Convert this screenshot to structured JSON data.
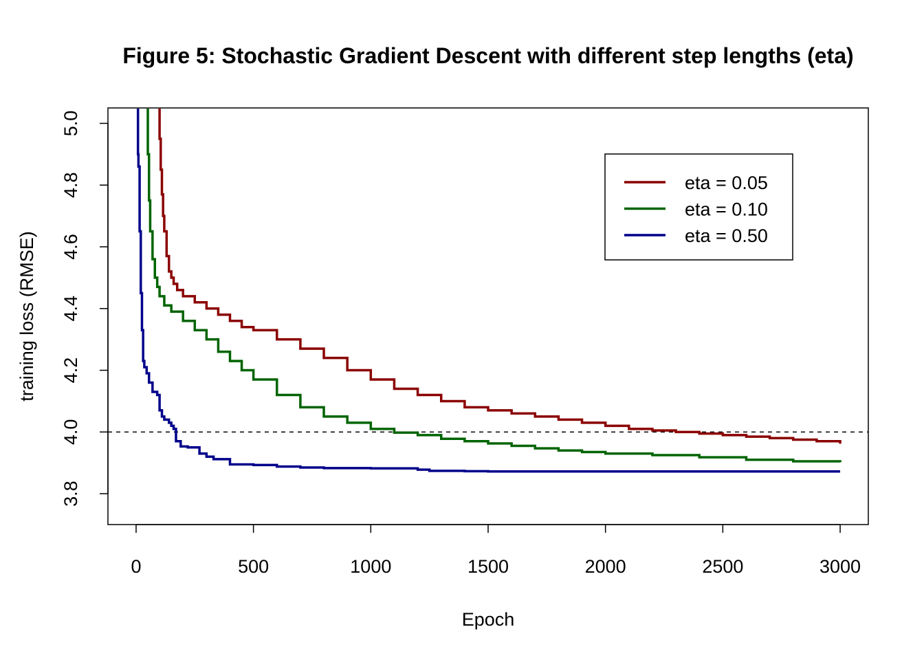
{
  "chart_data": {
    "type": "line",
    "title": "Figure 5: Stochastic Gradient Descent with different step lengths (eta)",
    "xlabel": "Epoch",
    "ylabel": "training loss (RMSE)",
    "xlim": [
      -120,
      3120
    ],
    "ylim": [
      3.7,
      5.05
    ],
    "xticks": [
      0,
      500,
      1000,
      1500,
      2000,
      2500,
      3000
    ],
    "xtick_labels": [
      "0",
      "500",
      "1000",
      "1500",
      "2000",
      "2500",
      "3000"
    ],
    "yticks": [
      3.8,
      4.0,
      4.2,
      4.4,
      4.6,
      4.8,
      5.0
    ],
    "ytick_labels": [
      "3.8",
      "4.0",
      "4.2",
      "4.4",
      "4.6",
      "4.8",
      "5.0"
    ],
    "grid": false,
    "legend_position": "top-right",
    "reference_line": {
      "y": 4.0,
      "style": "dashed",
      "color": "#000000"
    },
    "series": [
      {
        "name": "eta = 0.05",
        "color": "#8B0000",
        "x": [
          95,
          100,
          105,
          110,
          115,
          120,
          130,
          140,
          150,
          160,
          175,
          200,
          250,
          300,
          350,
          400,
          450,
          500,
          600,
          700,
          800,
          900,
          1000,
          1100,
          1200,
          1300,
          1400,
          1500,
          1600,
          1700,
          1800,
          1900,
          2000,
          2100,
          2200,
          2300,
          2400,
          2500,
          2600,
          2700,
          2800,
          2900,
          3000
        ],
        "y": [
          5.05,
          4.95,
          4.85,
          4.77,
          4.7,
          4.65,
          4.57,
          4.52,
          4.5,
          4.48,
          4.46,
          4.44,
          4.42,
          4.4,
          4.38,
          4.36,
          4.34,
          4.33,
          4.3,
          4.27,
          4.24,
          4.2,
          4.17,
          4.14,
          4.12,
          4.1,
          4.08,
          4.07,
          4.06,
          4.05,
          4.04,
          4.03,
          4.02,
          4.01,
          4.005,
          4.0,
          3.995,
          3.99,
          3.985,
          3.98,
          3.975,
          3.97,
          3.962
        ]
      },
      {
        "name": "eta = 0.10",
        "color": "#006400",
        "x": [
          45,
          50,
          55,
          60,
          70,
          80,
          90,
          100,
          120,
          150,
          200,
          250,
          300,
          350,
          400,
          450,
          500,
          600,
          700,
          800,
          900,
          1000,
          1100,
          1200,
          1300,
          1400,
          1500,
          1600,
          1700,
          1800,
          1900,
          2000,
          2200,
          2400,
          2600,
          2800,
          3000
        ],
        "y": [
          5.05,
          4.9,
          4.75,
          4.65,
          4.56,
          4.5,
          4.47,
          4.44,
          4.41,
          4.39,
          4.36,
          4.33,
          4.3,
          4.26,
          4.23,
          4.2,
          4.17,
          4.12,
          4.08,
          4.05,
          4.03,
          4.01,
          3.998,
          3.99,
          3.978,
          3.97,
          3.963,
          3.955,
          3.947,
          3.94,
          3.935,
          3.93,
          3.925,
          3.918,
          3.91,
          3.905,
          3.902
        ]
      },
      {
        "name": "eta = 0.50",
        "color": "#00008B",
        "x": [
          5,
          8,
          10,
          15,
          20,
          25,
          30,
          35,
          45,
          55,
          70,
          90,
          100,
          110,
          120,
          140,
          150,
          160,
          170,
          190,
          220,
          270,
          300,
          330,
          400,
          500,
          600,
          700,
          800,
          1000,
          1200,
          1250,
          1400,
          1500,
          1800,
          2100,
          2500,
          3000
        ],
        "y": [
          5.05,
          4.9,
          4.86,
          4.65,
          4.45,
          4.33,
          4.23,
          4.21,
          4.19,
          4.16,
          4.13,
          4.12,
          4.07,
          4.05,
          4.04,
          4.03,
          4.02,
          4.01,
          3.97,
          3.953,
          3.95,
          3.93,
          3.92,
          3.912,
          3.895,
          3.893,
          3.888,
          3.885,
          3.883,
          3.882,
          3.878,
          3.874,
          3.873,
          3.872,
          3.872,
          3.872,
          3.872,
          3.872
        ]
      }
    ]
  }
}
